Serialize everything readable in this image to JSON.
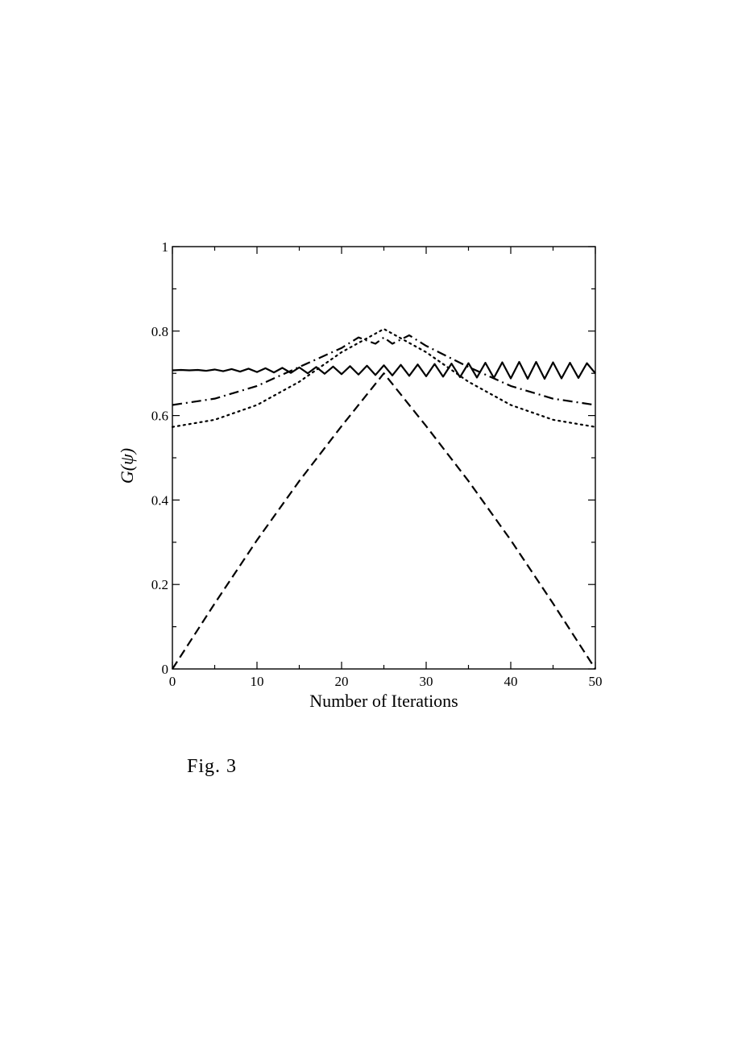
{
  "chart_data": {
    "type": "line",
    "xlabel": "Number of Iterations",
    "ylabel": "G(ψ)",
    "xlim": [
      0,
      50
    ],
    "ylim": [
      0,
      1
    ],
    "xticks": [
      0,
      10,
      20,
      30,
      40,
      50
    ],
    "yticks": [
      0,
      0.2,
      0.4,
      0.6,
      0.8,
      1
    ],
    "xtick_labels": [
      "0",
      "10",
      "20",
      "30",
      "40",
      "50"
    ],
    "ytick_labels": [
      "0",
      "0.2",
      "0.4",
      "0.6",
      "0.8",
      "1"
    ],
    "grid": false,
    "legend": false,
    "series": [
      {
        "style": "solid",
        "x": [
          0,
          1,
          2,
          3,
          4,
          5,
          6,
          7,
          8,
          9,
          10,
          11,
          12,
          13,
          14,
          15,
          16,
          17,
          18,
          19,
          20,
          21,
          22,
          23,
          24,
          25,
          26,
          27,
          28,
          29,
          30,
          31,
          32,
          33,
          34,
          35,
          36,
          37,
          38,
          39,
          40,
          41,
          42,
          43,
          44,
          45,
          46,
          47,
          48,
          49,
          50
        ],
        "y": [
          0.707,
          0.708,
          0.707,
          0.708,
          0.706,
          0.709,
          0.705,
          0.71,
          0.704,
          0.711,
          0.703,
          0.712,
          0.702,
          0.713,
          0.701,
          0.714,
          0.7,
          0.715,
          0.699,
          0.716,
          0.698,
          0.717,
          0.697,
          0.718,
          0.696,
          0.719,
          0.695,
          0.72,
          0.694,
          0.721,
          0.693,
          0.722,
          0.692,
          0.723,
          0.691,
          0.724,
          0.69,
          0.725,
          0.689,
          0.726,
          0.688,
          0.727,
          0.687,
          0.727,
          0.687,
          0.726,
          0.688,
          0.725,
          0.689,
          0.724,
          0.7
        ]
      },
      {
        "style": "dashed",
        "x": [
          0,
          5,
          10,
          15,
          20,
          25,
          30,
          35,
          40,
          45,
          50
        ],
        "y": [
          0.0,
          0.155,
          0.305,
          0.445,
          0.575,
          0.7,
          0.575,
          0.445,
          0.305,
          0.155,
          0.0
        ]
      },
      {
        "style": "dotted",
        "x": [
          0,
          5,
          10,
          15,
          20,
          25,
          30,
          35,
          40,
          45,
          50
        ],
        "y": [
          0.573,
          0.59,
          0.625,
          0.68,
          0.75,
          0.805,
          0.75,
          0.68,
          0.625,
          0.59,
          0.573
        ]
      },
      {
        "style": "dashdot",
        "x": [
          0,
          5,
          10,
          15,
          20,
          22,
          24,
          25,
          26,
          28,
          30,
          35,
          40,
          45,
          50
        ],
        "y": [
          0.625,
          0.64,
          0.67,
          0.715,
          0.76,
          0.785,
          0.77,
          0.785,
          0.77,
          0.79,
          0.765,
          0.715,
          0.67,
          0.64,
          0.625
        ]
      }
    ]
  },
  "caption": "Fig. 3"
}
